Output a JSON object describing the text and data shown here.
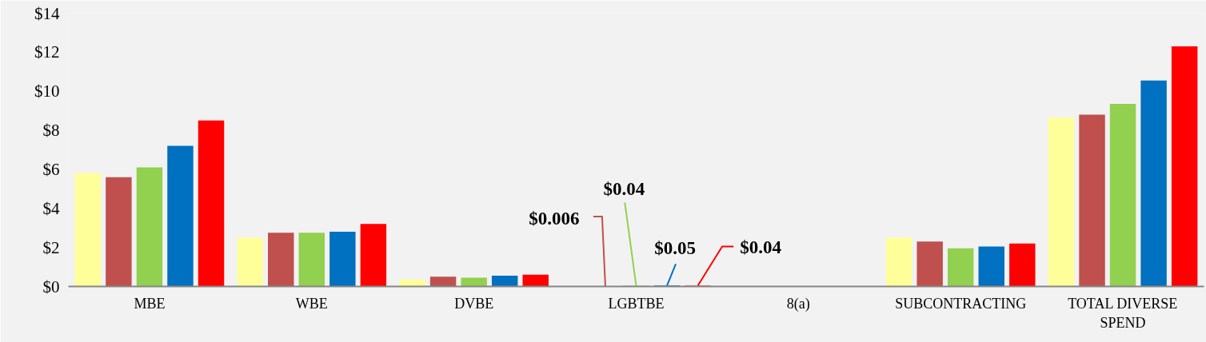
{
  "chart_data": {
    "type": "bar",
    "categories": [
      "MBE",
      "WBE",
      "DVBE",
      "LGBTBE",
      "8(a)",
      "SUBCONTRACTING",
      "TOTAL DIVERSE SPEND"
    ],
    "series": [
      {
        "color": "#ffff99",
        "values": [
          5.8,
          2.5,
          0.35,
          null,
          null,
          2.5,
          8.65
        ]
      },
      {
        "color": "#c0504d",
        "values": [
          5.6,
          2.75,
          0.5,
          0.006,
          null,
          2.3,
          8.8
        ],
        "value_labels": [
          null,
          null,
          null,
          "$0.006",
          null,
          null,
          null
        ]
      },
      {
        "color": "#92d050",
        "values": [
          6.1,
          2.75,
          0.45,
          0.04,
          null,
          1.95,
          9.35
        ],
        "value_labels": [
          null,
          null,
          null,
          "$0.04",
          null,
          null,
          null
        ]
      },
      {
        "color": "#0070c0",
        "values": [
          7.2,
          2.8,
          0.55,
          0.05,
          null,
          2.05,
          10.55
        ],
        "value_labels": [
          null,
          null,
          null,
          "$0.05",
          null,
          null,
          null
        ]
      },
      {
        "color": "#ff0000",
        "values": [
          8.5,
          3.2,
          0.6,
          0.04,
          null,
          2.2,
          12.3
        ],
        "value_labels": [
          null,
          null,
          null,
          "$0.04",
          null,
          null,
          null
        ]
      }
    ],
    "ylim": [
      0,
      14
    ],
    "yticks": [
      {
        "value": 0,
        "label": "$0"
      },
      {
        "value": 2,
        "label": "$2"
      },
      {
        "value": 4,
        "label": "$4"
      },
      {
        "value": 6,
        "label": "$6"
      },
      {
        "value": 8,
        "label": "$8"
      },
      {
        "value": 10,
        "label": "$10"
      },
      {
        "value": 12,
        "label": "$12"
      },
      {
        "value": 14,
        "label": "$14"
      }
    ],
    "grid": false
  }
}
